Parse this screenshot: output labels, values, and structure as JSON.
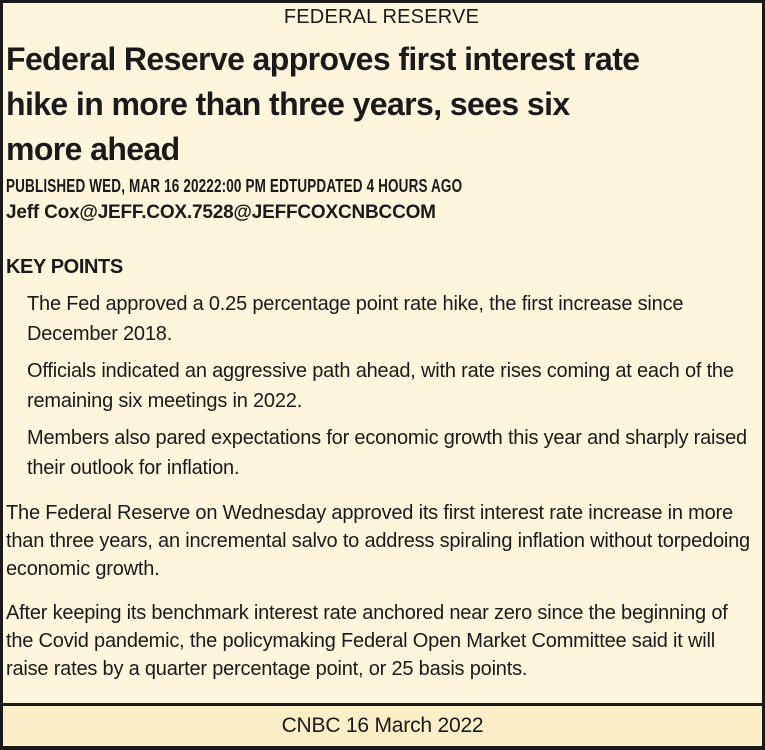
{
  "article": {
    "eyebrow": "FEDERAL RESERVE",
    "headline": "Federal Reserve approves first interest rate hike in more than three years, sees six more ahead",
    "headline_lines": [
      "Federal Reserve approves first interest rate",
      "hike in more than three years, sees six",
      "more ahead"
    ],
    "published_line": "PUBLISHED WED, MAR 16 20222:00 PM EDTUPDATED 4 HOURS AGO",
    "byline": "Jeff Cox@JEFF.COX.7528@JEFFCOXCNBCCOM",
    "key_points": {
      "title": "KEY POINTS",
      "items": [
        "The Fed approved a 0.25 percentage point rate hike, the first increase since December 2018.",
        "Officials indicated an aggressive path ahead, with rate rises coming at each of the remaining six meetings in 2022.",
        "Members also pared expectations for economic growth this year and sharply raised their outlook for inflation."
      ]
    },
    "body_paragraphs": [
      "The Federal Reserve on Wednesday approved its first interest rate increase in more than three years, an incremental salvo to address spiraling inflation without torpedoing economic growth.",
      "After keeping its benchmark interest rate anchored near zero since the beginning of the Covid pandemic, the policymaking Federal Open Market Committee said it will raise rates by a quarter percentage point, or 25 basis points."
    ],
    "footer_caption": "CNBC 16 March 2022",
    "colors": {
      "page_background": "#FDF5DC",
      "footer_background": "#FCEFC8",
      "border": "#1a1a1a",
      "text": "#1a1a1a"
    }
  }
}
